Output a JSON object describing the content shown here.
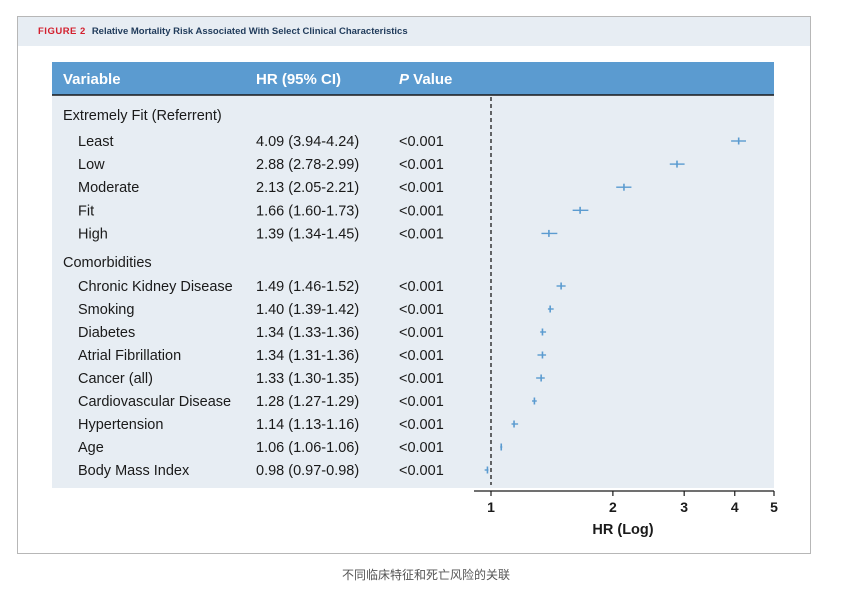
{
  "figure": {
    "label": "FIGURE 2",
    "title": "Relative Mortality Risk Associated With Select Clinical Characteristics"
  },
  "caption": "不同临床特征和死亡风险的关联",
  "colors": {
    "header_band": "#5b9bd0",
    "table_bg": "#e7edf3",
    "marker": "#5b9bd0",
    "text": "#1a1a1a"
  },
  "chart_data": {
    "type": "forest",
    "columns": {
      "variable": "Variable",
      "hr": "HR (95% CI)",
      "p_italic": "P",
      "p_rest": " Value"
    },
    "xlabel": "HR (Log)",
    "xscale": "log",
    "xlim": [
      0.97,
      5
    ],
    "xticks": [
      1,
      2,
      3,
      4,
      5
    ],
    "reference_line": 1,
    "groups": [
      {
        "name": "Extremely Fit (Referrent)",
        "rows": [
          {
            "variable": "Least",
            "hr_text": "4.09 (3.94-4.24)",
            "p": "<0.001",
            "hr": 4.09,
            "lo": 3.94,
            "hi": 4.24
          },
          {
            "variable": "Low",
            "hr_text": "2.88 (2.78-2.99)",
            "p": "<0.001",
            "hr": 2.88,
            "lo": 2.78,
            "hi": 2.99
          },
          {
            "variable": "Moderate",
            "hr_text": "2.13 (2.05-2.21)",
            "p": "<0.001",
            "hr": 2.13,
            "lo": 2.05,
            "hi": 2.21
          },
          {
            "variable": "Fit",
            "hr_text": "1.66 (1.60-1.73)",
            "p": "<0.001",
            "hr": 1.66,
            "lo": 1.6,
            "hi": 1.73
          },
          {
            "variable": "High",
            "hr_text": "1.39 (1.34-1.45)",
            "p": "<0.001",
            "hr": 1.39,
            "lo": 1.34,
            "hi": 1.45
          }
        ]
      },
      {
        "name": "Comorbidities",
        "rows": [
          {
            "variable": "Chronic Kidney Disease",
            "hr_text": "1.49 (1.46-1.52)",
            "p": "<0.001",
            "hr": 1.49,
            "lo": 1.46,
            "hi": 1.52
          },
          {
            "variable": "Smoking",
            "hr_text": "1.40 (1.39-1.42)",
            "p": "<0.001",
            "hr": 1.4,
            "lo": 1.39,
            "hi": 1.42
          },
          {
            "variable": "Diabetes",
            "hr_text": "1.34 (1.33-1.36)",
            "p": "<0.001",
            "hr": 1.34,
            "lo": 1.33,
            "hi": 1.36
          },
          {
            "variable": "Atrial Fibrillation",
            "hr_text": "1.34 (1.31-1.36)",
            "p": "<0.001",
            "hr": 1.34,
            "lo": 1.31,
            "hi": 1.36
          },
          {
            "variable": "Cancer (all)",
            "hr_text": "1.33 (1.30-1.35)",
            "p": "<0.001",
            "hr": 1.33,
            "lo": 1.3,
            "hi": 1.35
          },
          {
            "variable": "Cardiovascular Disease",
            "hr_text": "1.28 (1.27-1.29)",
            "p": "<0.001",
            "hr": 1.28,
            "lo": 1.27,
            "hi": 1.29
          },
          {
            "variable": "Hypertension",
            "hr_text": "1.14 (1.13-1.16)",
            "p": "<0.001",
            "hr": 1.14,
            "lo": 1.13,
            "hi": 1.16
          },
          {
            "variable": "Age",
            "hr_text": "1.06 (1.06-1.06)",
            "p": "<0.001",
            "hr": 1.06,
            "lo": 1.06,
            "hi": 1.06
          },
          {
            "variable": "Body Mass Index",
            "hr_text": "0.98 (0.97-0.98)",
            "p": "<0.001",
            "hr": 0.98,
            "lo": 0.97,
            "hi": 0.98
          }
        ]
      }
    ]
  }
}
